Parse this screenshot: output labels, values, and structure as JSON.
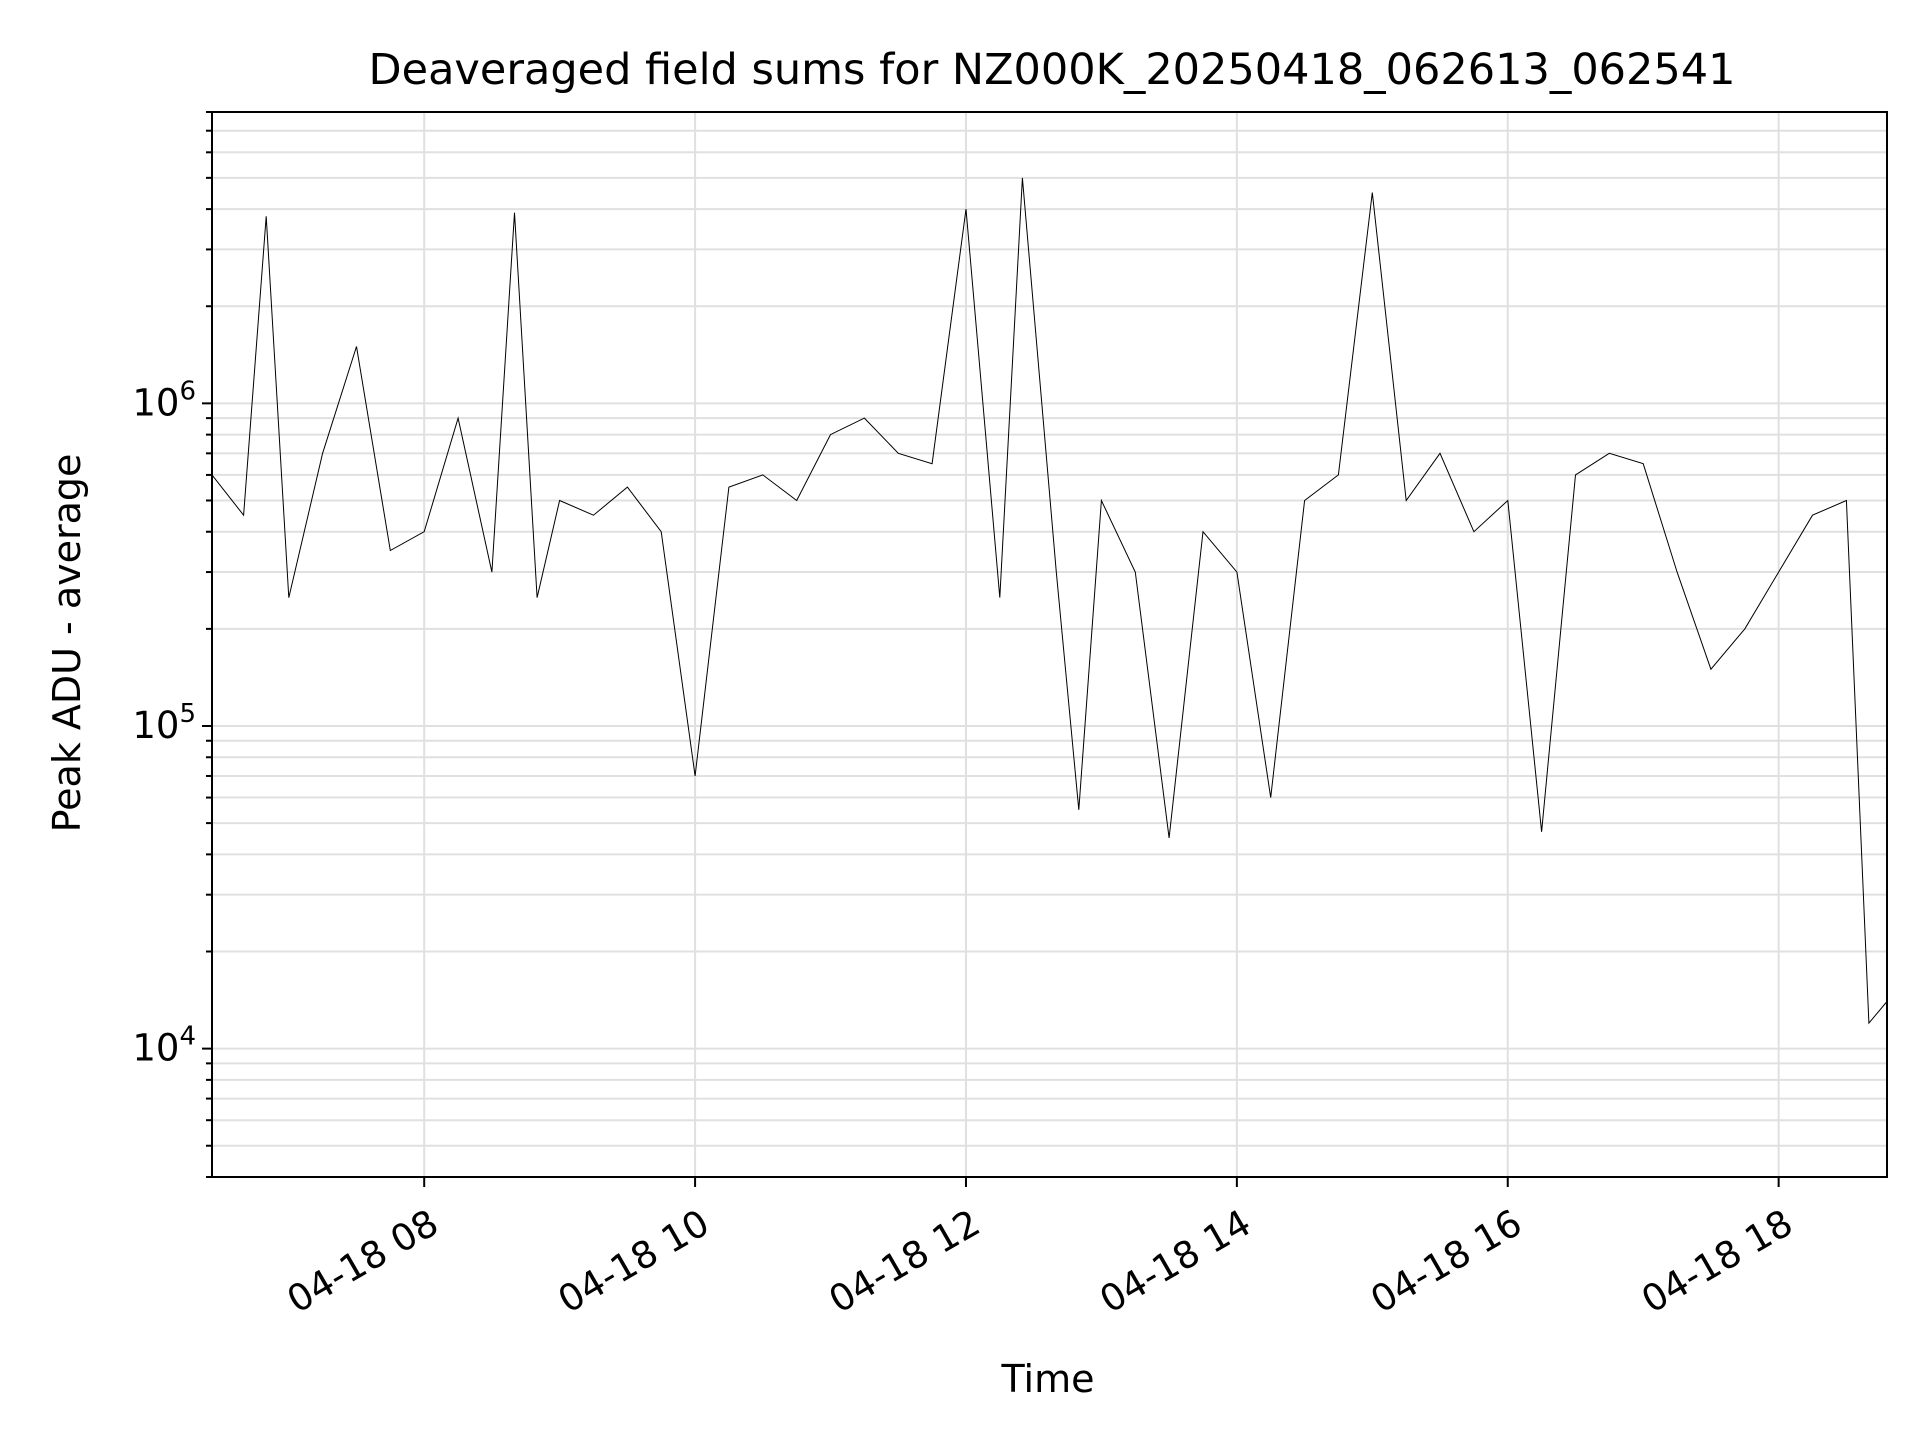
{
  "chart_data": {
    "type": "line",
    "title": "Deaveraged field sums for NZ000K_20250418_062613_062541",
    "xlabel": "Time",
    "ylabel": "Peak ADU - average",
    "yscale": "log",
    "ylim": [
      4000,
      8000000
    ],
    "xlim": [
      "04-18 06:26",
      "04-18 18:48"
    ],
    "grid": true,
    "x_ticks": [
      {
        "value": "04-18 08:00",
        "label": "04-18 08"
      },
      {
        "value": "04-18 10:00",
        "label": "04-18 10"
      },
      {
        "value": "04-18 12:00",
        "label": "04-18 12"
      },
      {
        "value": "04-18 14:00",
        "label": "04-18 14"
      },
      {
        "value": "04-18 16:00",
        "label": "04-18 16"
      },
      {
        "value": "04-18 18:00",
        "label": "04-18 18"
      }
    ],
    "y_ticks": [
      {
        "value": 10000,
        "base": "10",
        "exp": "4"
      },
      {
        "value": 100000,
        "base": "10",
        "exp": "5"
      },
      {
        "value": 1000000,
        "base": "10",
        "exp": "6"
      }
    ],
    "series": [
      {
        "color": "#000000",
        "line_width": 1,
        "points": [
          [
            "04-18 06:26",
            600000
          ],
          [
            "04-18 06:40",
            450000
          ],
          [
            "04-18 06:50",
            3800000
          ],
          [
            "04-18 07:00",
            250000
          ],
          [
            "04-18 07:15",
            700000
          ],
          [
            "04-18 07:30",
            1500000
          ],
          [
            "04-18 07:45",
            350000
          ],
          [
            "04-18 08:00",
            400000
          ],
          [
            "04-18 08:15",
            900000
          ],
          [
            "04-18 08:30",
            300000
          ],
          [
            "04-18 08:40",
            3900000
          ],
          [
            "04-18 08:50",
            250000
          ],
          [
            "04-18 09:00",
            500000
          ],
          [
            "04-18 09:15",
            450000
          ],
          [
            "04-18 09:30",
            550000
          ],
          [
            "04-18 09:45",
            400000
          ],
          [
            "04-18 10:00",
            70000
          ],
          [
            "04-18 10:15",
            550000
          ],
          [
            "04-18 10:30",
            600000
          ],
          [
            "04-18 10:45",
            500000
          ],
          [
            "04-18 11:00",
            800000
          ],
          [
            "04-18 11:15",
            900000
          ],
          [
            "04-18 11:30",
            700000
          ],
          [
            "04-18 11:45",
            650000
          ],
          [
            "04-18 12:00",
            4000000
          ],
          [
            "04-18 12:15",
            250000
          ],
          [
            "04-18 12:25",
            5000000
          ],
          [
            "04-18 12:40",
            300000
          ],
          [
            "04-18 12:50",
            55000
          ],
          [
            "04-18 13:00",
            500000
          ],
          [
            "04-18 13:15",
            300000
          ],
          [
            "04-18 13:30",
            45000
          ],
          [
            "04-18 13:45",
            400000
          ],
          [
            "04-18 14:00",
            300000
          ],
          [
            "04-18 14:15",
            60000
          ],
          [
            "04-18 14:30",
            500000
          ],
          [
            "04-18 14:45",
            600000
          ],
          [
            "04-18 15:00",
            4500000
          ],
          [
            "04-18 15:15",
            500000
          ],
          [
            "04-18 15:30",
            700000
          ],
          [
            "04-18 15:45",
            400000
          ],
          [
            "04-18 16:00",
            500000
          ],
          [
            "04-18 16:15",
            47000
          ],
          [
            "04-18 16:30",
            600000
          ],
          [
            "04-18 16:45",
            700000
          ],
          [
            "04-18 17:00",
            650000
          ],
          [
            "04-18 17:15",
            300000
          ],
          [
            "04-18 17:30",
            150000
          ],
          [
            "04-18 17:45",
            200000
          ],
          [
            "04-18 18:00",
            300000
          ],
          [
            "04-18 18:15",
            450000
          ],
          [
            "04-18 18:30",
            500000
          ],
          [
            "04-18 18:40",
            12000
          ],
          [
            "04-18 18:48",
            14000
          ]
        ]
      }
    ]
  }
}
